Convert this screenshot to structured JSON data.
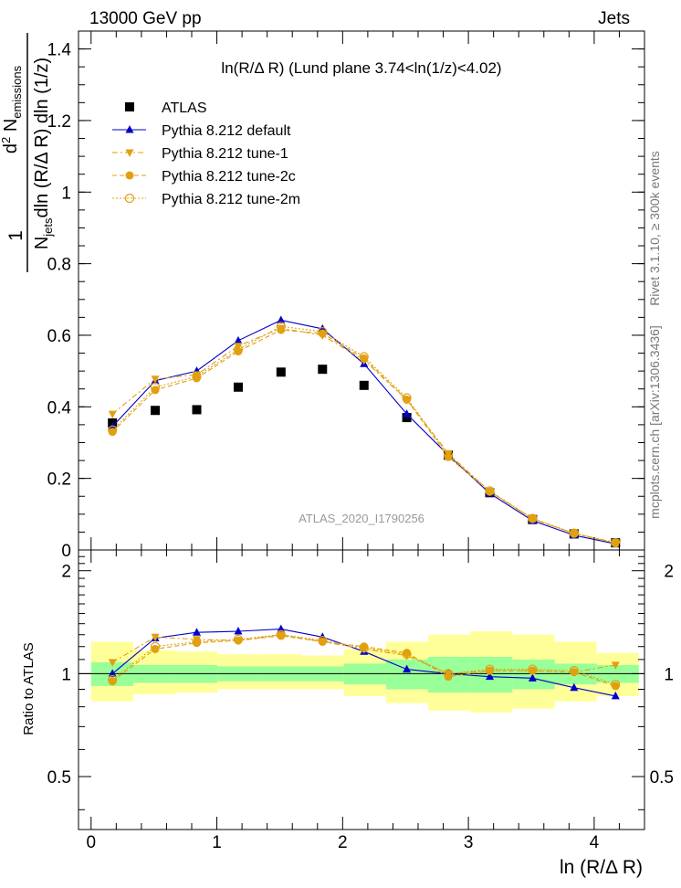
{
  "header": {
    "energy": "13000 GeV pp",
    "category": "Jets"
  },
  "side": {
    "rivet": "Rivet 3.1.10, ≥ 300k events",
    "mcplots": "mcplots.cern.ch [arXiv:1306.3436]"
  },
  "watermark": "ATLAS_2020_I1790256",
  "chart_data": [
    {
      "type": "scatter",
      "panel": "main",
      "title": "ln(R/Δ R) (Lund plane 3.74<ln(1/z)<4.02)",
      "ylabel": "1/N_jets d²N_emissions / dln(R/ΔR) dln(1/z)",
      "ylabel_parts": {
        "one": "1",
        "num_a": "d",
        "num_sup": "2",
        "num_b": " N",
        "num_sub": "emissions",
        "den_a": "N",
        "den_sub": "jets",
        "den_b": "dln (R/Δ R) dln (1/z)"
      },
      "xlabel": "ln (R/Δ R)",
      "xlim": [
        -0.1,
        4.4
      ],
      "ylim": [
        0,
        1.45
      ],
      "y_ticks": [
        "0",
        "0.2",
        "0.4",
        "0.6",
        "0.8",
        "1",
        "1.2",
        "1.4"
      ],
      "x": [
        0.17,
        0.51,
        0.84,
        1.17,
        1.51,
        1.84,
        2.17,
        2.51,
        2.84,
        3.17,
        3.51,
        3.84,
        4.17
      ],
      "series": [
        {
          "name": "ATLAS",
          "color": "#000000",
          "marker": "square",
          "line": "none",
          "values": [
            0.355,
            0.39,
            0.392,
            0.455,
            0.497,
            0.505,
            0.46,
            0.37,
            0.265,
            0.16,
            0.085,
            0.045,
            0.02
          ]
        },
        {
          "name": "Pythia 8.212 default",
          "color": "#0000cc",
          "marker": "triangle-up",
          "line": "solid",
          "values": [
            0.345,
            0.473,
            0.5,
            0.585,
            0.642,
            0.618,
            0.52,
            0.38,
            0.265,
            0.158,
            0.082,
            0.041,
            0.017
          ]
        },
        {
          "name": "Pythia 8.212 tune-1",
          "color": "#e0a010",
          "marker": "triangle-down",
          "line": "dashdot",
          "values": [
            0.38,
            0.478,
            0.49,
            0.57,
            0.62,
            0.6,
            0.53,
            0.42,
            0.27,
            0.163,
            0.087,
            0.046,
            0.021
          ]
        },
        {
          "name": "Pythia 8.212 tune-2c",
          "color": "#e0a010",
          "marker": "circle",
          "line": "dashed",
          "values": [
            0.33,
            0.447,
            0.48,
            0.555,
            0.615,
            0.605,
            0.535,
            0.42,
            0.26,
            0.163,
            0.087,
            0.046,
            0.019
          ]
        },
        {
          "name": "Pythia 8.212 tune-2m",
          "color": "#e0a010",
          "marker": "open-circle",
          "line": "dotted",
          "values": [
            0.335,
            0.455,
            0.485,
            0.56,
            0.625,
            0.61,
            0.54,
            0.425,
            0.265,
            0.165,
            0.088,
            0.047,
            0.02
          ]
        }
      ]
    },
    {
      "type": "scatter",
      "panel": "ratio",
      "ylabel": "Ratio to ATLAS",
      "ylim": [
        0.35,
        2.3
      ],
      "y_ticks": [
        "0.5",
        "1",
        "2"
      ],
      "x_ticks": [
        "0",
        "1",
        "2",
        "3",
        "4"
      ],
      "bins": [
        0,
        0.335,
        0.67,
        1.005,
        1.34,
        1.675,
        2.01,
        2.345,
        2.68,
        3.015,
        3.35,
        3.685,
        4.02,
        4.355
      ],
      "band_inner": [
        [
          0.92,
          1.08
        ],
        [
          0.94,
          1.06
        ],
        [
          0.94,
          1.06
        ],
        [
          0.95,
          1.05
        ],
        [
          0.95,
          1.05
        ],
        [
          0.95,
          1.05
        ],
        [
          0.93,
          1.07
        ],
        [
          0.9,
          1.1
        ],
        [
          0.88,
          1.12
        ],
        [
          0.88,
          1.12
        ],
        [
          0.9,
          1.1
        ],
        [
          0.93,
          1.07
        ],
        [
          0.94,
          1.06
        ]
      ],
      "band_outer": [
        [
          0.83,
          1.24
        ],
        [
          0.87,
          1.17
        ],
        [
          0.88,
          1.16
        ],
        [
          0.9,
          1.14
        ],
        [
          0.9,
          1.14
        ],
        [
          0.9,
          1.13
        ],
        [
          0.86,
          1.18
        ],
        [
          0.82,
          1.24
        ],
        [
          0.78,
          1.3
        ],
        [
          0.77,
          1.33
        ],
        [
          0.79,
          1.3
        ],
        [
          0.83,
          1.24
        ],
        [
          0.86,
          1.15
        ]
      ],
      "series": [
        {
          "name": "Pythia 8.212 default",
          "color": "#0000cc",
          "marker": "triangle-up",
          "line": "solid",
          "values": [
            1.0,
            1.27,
            1.32,
            1.33,
            1.35,
            1.28,
            1.16,
            1.03,
            1.0,
            0.98,
            0.97,
            0.91,
            0.86
          ]
        },
        {
          "name": "Pythia 8.212 tune-1",
          "color": "#e0a010",
          "marker": "triangle-down",
          "line": "dashdot",
          "values": [
            1.08,
            1.28,
            1.26,
            1.25,
            1.3,
            1.24,
            1.18,
            1.13,
            1.0,
            1.02,
            1.02,
            1.01,
            1.06
          ]
        },
        {
          "name": "Pythia 8.212 tune-2c",
          "color": "#e0a010",
          "marker": "circle",
          "line": "dashed",
          "values": [
            0.95,
            1.18,
            1.23,
            1.25,
            1.29,
            1.24,
            1.2,
            1.15,
            0.98,
            1.02,
            1.02,
            1.01,
            0.92
          ]
        },
        {
          "name": "Pythia 8.212 tune-2m",
          "color": "#e0a010",
          "marker": "open-circle",
          "line": "dotted",
          "values": [
            0.96,
            1.2,
            1.24,
            1.26,
            1.3,
            1.25,
            1.19,
            1.14,
            1.0,
            1.03,
            1.03,
            1.02,
            0.93
          ]
        }
      ]
    }
  ]
}
